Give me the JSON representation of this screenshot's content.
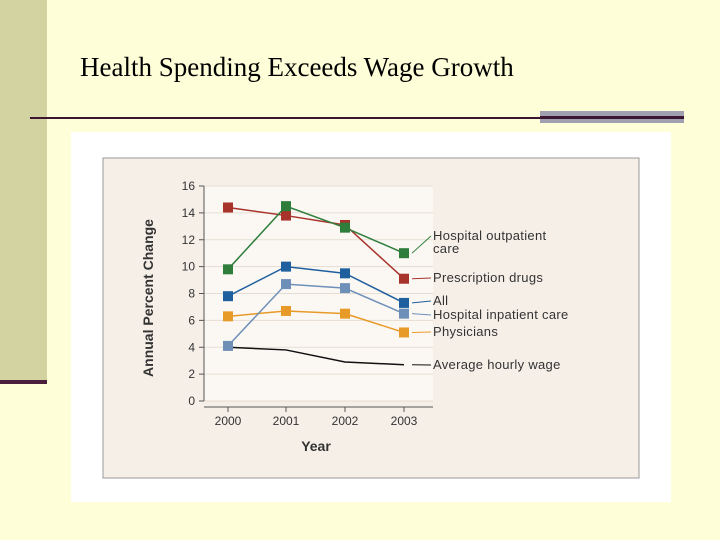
{
  "slide": {
    "title": "Health Spending Exceeds Wage Growth"
  },
  "colors": {
    "background": "#fefed8",
    "panel": "#f6efe8",
    "hospital_outpatient": "#2e7d3a",
    "prescription": "#a8332a",
    "all": "#1f5f9e",
    "hospital_inpatient": "#6d8fb8",
    "physicians": "#e89a28",
    "wage": "#111111"
  },
  "chart_data": {
    "type": "line",
    "title": "",
    "xlabel": "Year",
    "ylabel": "Annual Percent Change",
    "ylim": [
      0,
      16
    ],
    "yticks": [
      "0",
      "2",
      "4",
      "6",
      "8",
      "10",
      "12",
      "14",
      "16"
    ],
    "categories": [
      "2000",
      "2001",
      "2002",
      "2003"
    ],
    "grid": true,
    "series": [
      {
        "key": "hospital_outpatient",
        "name": "Hospital outpatient care",
        "label_lines": [
          "Hospital outpatient",
          "care"
        ],
        "values": [
          9.8,
          14.5,
          12.9,
          11.0
        ],
        "marker": true
      },
      {
        "key": "prescription",
        "name": "Prescription drugs",
        "label_lines": [
          "Prescription drugs"
        ],
        "values": [
          14.4,
          13.8,
          13.1,
          9.1
        ],
        "marker": true
      },
      {
        "key": "all",
        "name": "All",
        "label_lines": [
          "All"
        ],
        "values": [
          7.8,
          10.0,
          9.5,
          7.3
        ],
        "marker": true
      },
      {
        "key": "hospital_inpatient",
        "name": "Hospital inpatient care",
        "label_lines": [
          "Hospital inpatient care"
        ],
        "values": [
          4.1,
          8.7,
          8.4,
          6.5
        ],
        "marker": true
      },
      {
        "key": "physicians",
        "name": "Physicians",
        "label_lines": [
          "Physicians"
        ],
        "values": [
          6.3,
          6.7,
          6.5,
          5.1
        ],
        "marker": true
      },
      {
        "key": "wage",
        "name": "Average hourly wage",
        "label_lines": [
          "Average hourly wage"
        ],
        "values": [
          4.0,
          3.8,
          2.9,
          2.7
        ],
        "marker": false
      }
    ]
  }
}
